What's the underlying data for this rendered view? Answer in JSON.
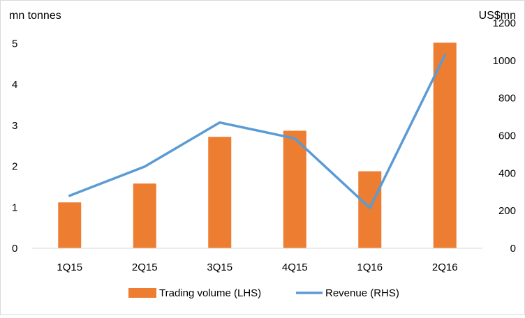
{
  "chart_data": {
    "type": "bar+line",
    "categories": [
      "1Q15",
      "2Q15",
      "3Q15",
      "4Q15",
      "1Q16",
      "2Q16"
    ],
    "series": [
      {
        "name": "Trading volume (LHS)",
        "type": "bar",
        "axis": "left",
        "color": "#ED7D31",
        "values": [
          1.12,
          1.58,
          2.72,
          2.87,
          1.88,
          5.02
        ]
      },
      {
        "name": "Revenue (RHS)",
        "type": "line",
        "axis": "right",
        "color": "#5B9BD5",
        "values": [
          280,
          435,
          670,
          585,
          215,
          1030
        ]
      }
    ],
    "y_left": {
      "label": "mn tonnes",
      "range": [
        0,
        5.5
      ],
      "ticks": [
        0,
        1,
        2,
        3,
        4,
        5
      ]
    },
    "y_right": {
      "label": "US$mn",
      "range": [
        0,
        1200
      ],
      "ticks": [
        0,
        200,
        400,
        600,
        800,
        1000,
        1200
      ]
    },
    "grid": false,
    "legend": "bottom"
  }
}
